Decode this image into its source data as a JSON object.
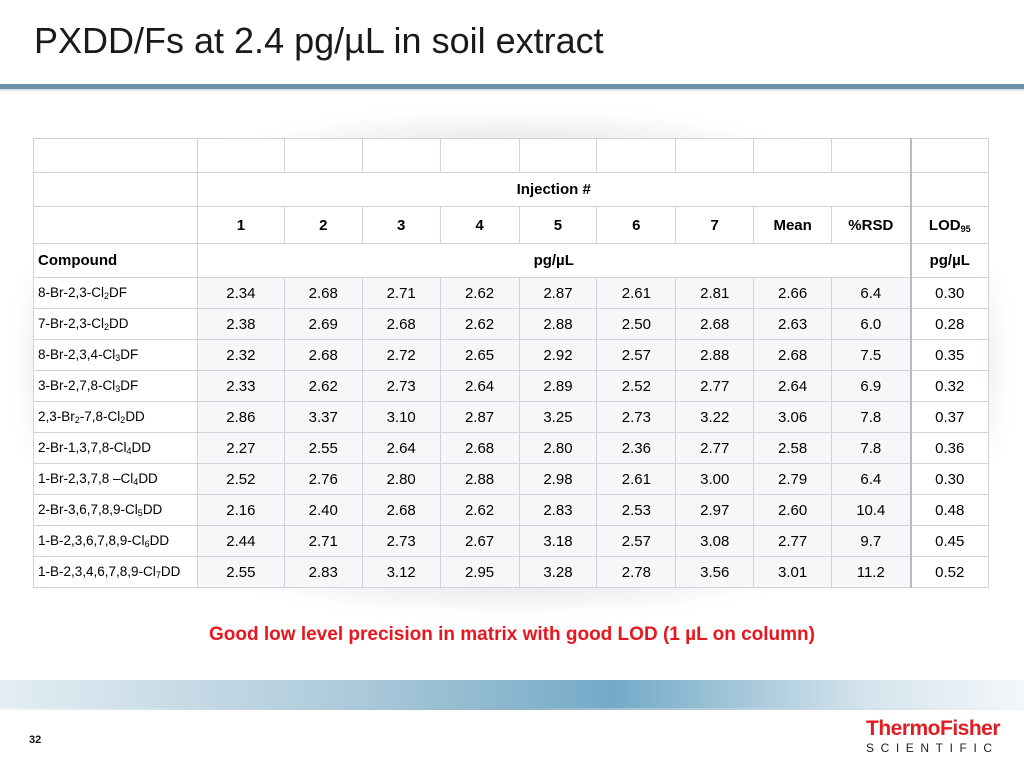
{
  "slide": {
    "title": "PXDD/Fs at 2.4 pg/µL in soil extract",
    "caption": "Good low level precision in matrix with good LOD (1 µL on column)",
    "page_number": "32",
    "logo_top": "ThermoFisher",
    "logo_bottom": "SCIENTIFIC"
  },
  "table": {
    "group_header": "Injection #",
    "columns": [
      "1",
      "2",
      "3",
      "4",
      "5",
      "6",
      "7",
      "Mean",
      "%RSD"
    ],
    "lod_label": "LOD",
    "lod_sub": "95",
    "compound_label": "Compound",
    "unit_label": "pg/µL",
    "lod_unit": "pg/µL",
    "rows": [
      {
        "compound": [
          "8-Br-2,3-Cl",
          "2",
          "DF"
        ],
        "values": [
          "2.34",
          "2.68",
          "2.71",
          "2.62",
          "2.87",
          "2.61",
          "2.81",
          "2.66",
          "6.4"
        ],
        "lod": "0.30"
      },
      {
        "compound": [
          "7-Br-2,3-Cl",
          "2",
          "DD"
        ],
        "values": [
          "2.38",
          "2.69",
          "2.68",
          "2.62",
          "2.88",
          "2.50",
          "2.68",
          "2.63",
          "6.0"
        ],
        "lod": "0.28"
      },
      {
        "compound": [
          "8-Br-2,3,4-Cl",
          "3",
          "DF"
        ],
        "values": [
          "2.32",
          "2.68",
          "2.72",
          "2.65",
          "2.92",
          "2.57",
          "2.88",
          "2.68",
          "7.5"
        ],
        "lod": "0.35"
      },
      {
        "compound": [
          "3-Br-2,7,8-Cl",
          "3",
          "DF"
        ],
        "values": [
          "2.33",
          "2.62",
          "2.73",
          "2.64",
          "2.89",
          "2.52",
          "2.77",
          "2.64",
          "6.9"
        ],
        "lod": "0.32"
      },
      {
        "compound": [
          "2,3-Br",
          "2",
          "-7,8-Cl",
          "2",
          "DD"
        ],
        "values": [
          "2.86",
          "3.37",
          "3.10",
          "2.87",
          "3.25",
          "2.73",
          "3.22",
          "3.06",
          "7.8"
        ],
        "lod": "0.37"
      },
      {
        "compound": [
          "2-Br-1,3,7,8-Cl",
          "4",
          "DD"
        ],
        "values": [
          "2.27",
          "2.55",
          "2.64",
          "2.68",
          "2.80",
          "2.36",
          "2.77",
          "2.58",
          "7.8"
        ],
        "lod": "0.36"
      },
      {
        "compound": [
          "1-Br-2,3,7,8 –Cl",
          "4",
          "DD"
        ],
        "values": [
          "2.52",
          "2.76",
          "2.80",
          "2.88",
          "2.98",
          "2.61",
          "3.00",
          "2.79",
          "6.4"
        ],
        "lod": "0.30"
      },
      {
        "compound": [
          "2-Br-3,6,7,8,9-Cl",
          "5",
          "DD"
        ],
        "values": [
          "2.16",
          "2.40",
          "2.68",
          "2.62",
          "2.83",
          "2.53",
          "2.97",
          "2.60",
          "10.4"
        ],
        "lod": "0.48"
      },
      {
        "compound": [
          "1-B-2,3,6,7,8,9-Cl",
          "6",
          "DD"
        ],
        "values": [
          "2.44",
          "2.71",
          "2.73",
          "2.67",
          "3.18",
          "2.57",
          "3.08",
          "2.77",
          "9.7"
        ],
        "lod": "0.45"
      },
      {
        "compound": [
          "1-B-2,3,4,6,7,8,9-Cl",
          "7",
          "DD"
        ],
        "values": [
          "2.55",
          "2.83",
          "3.12",
          "2.95",
          "3.28",
          "2.78",
          "3.56",
          "3.01",
          "11.2"
        ],
        "lod": "0.52"
      }
    ]
  }
}
